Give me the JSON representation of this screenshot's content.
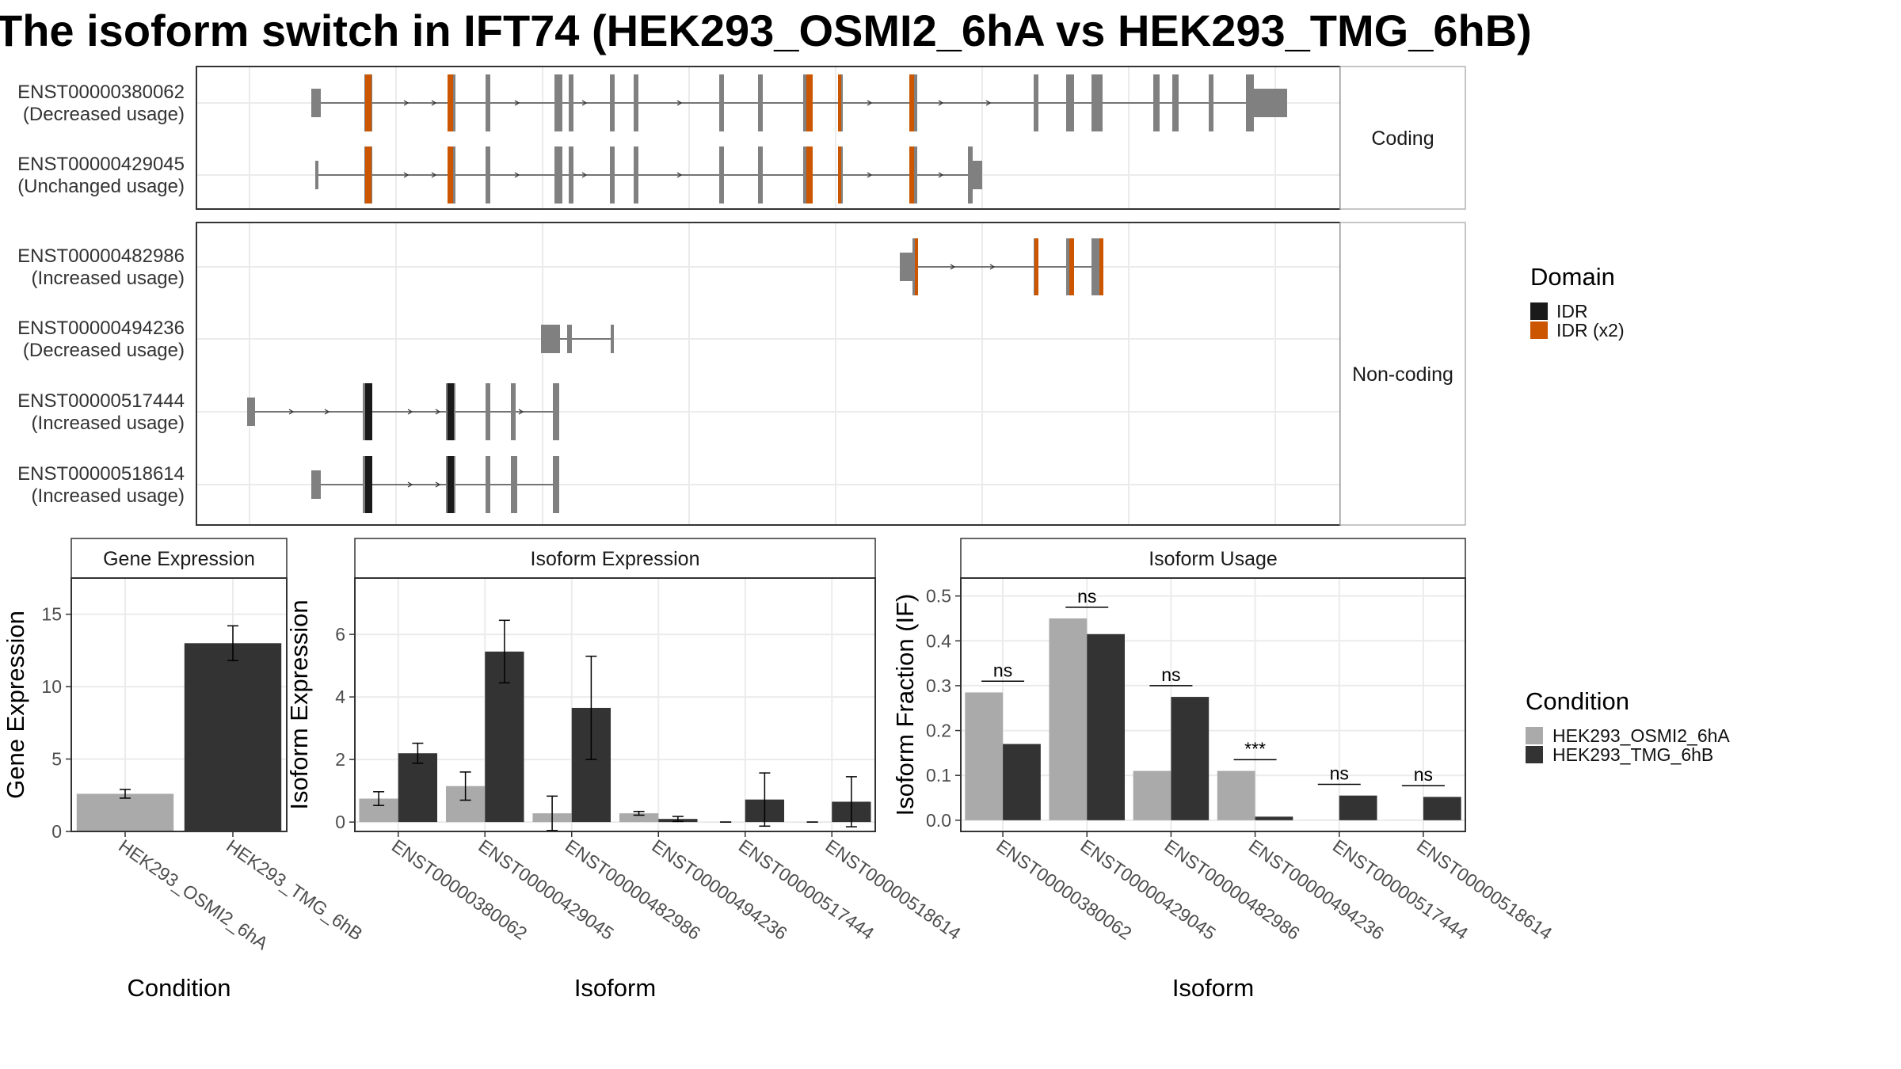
{
  "title": "The isoform switch in IFT74 (HEK293_OSMI2_6hA vs HEK293_TMG_6hB)",
  "colors": {
    "exon": "#808080",
    "idr": "#1a1a1a",
    "idr_x2": "#cc5500",
    "osmi": "#aaaaaa",
    "tmg": "#333333"
  },
  "structure": {
    "facets": [
      {
        "label": "Coding",
        "transcripts": [
          {
            "id": "ENST00000380062",
            "usage": "(Decreased usage)"
          },
          {
            "id": "ENST00000429045",
            "usage": "(Unchanged usage)"
          }
        ]
      },
      {
        "label": "Non-coding",
        "transcripts": [
          {
            "id": "ENST00000482986",
            "usage": "(Increased usage)"
          },
          {
            "id": "ENST00000494236",
            "usage": "(Decreased usage)"
          },
          {
            "id": "ENST00000517444",
            "usage": "(Increased usage)"
          },
          {
            "id": "ENST00000518614",
            "usage": "(Increased usage)"
          }
        ]
      }
    ]
  },
  "legend_domain": {
    "title": "Domain",
    "items": [
      {
        "label": "IDR",
        "color": "#1a1a1a"
      },
      {
        "label": "IDR (x2)",
        "color": "#cc5500"
      }
    ]
  },
  "legend_condition": {
    "title": "Condition",
    "items": [
      {
        "label": "HEK293_OSMI2_6hA",
        "color": "#aaaaaa"
      },
      {
        "label": "HEK293_TMG_6hB",
        "color": "#333333"
      }
    ]
  },
  "chart_data": [
    {
      "type": "bar",
      "title": "Gene Expression",
      "xlabel": "Condition",
      "ylabel": "Gene Expression",
      "categories": [
        "HEK293_OSMI2_6hA",
        "HEK293_TMG_6hB"
      ],
      "values": [
        2.6,
        13.0
      ],
      "errors": [
        0.3,
        1.2
      ],
      "ylim": [
        0,
        17.5
      ],
      "yticks": [
        0,
        5,
        10,
        15
      ]
    },
    {
      "type": "bar",
      "title": "Isoform Expression",
      "xlabel": "Isoform",
      "ylabel": "Isoform Expression",
      "categories": [
        "ENST00000380062",
        "ENST00000429045",
        "ENST00000482986",
        "ENST00000494236",
        "ENST00000517444",
        "ENST00000518614"
      ],
      "series": [
        {
          "name": "HEK293_OSMI2_6hA",
          "values": [
            0.75,
            1.15,
            0.28,
            0.28,
            0.0,
            0.0
          ],
          "errors": [
            0.22,
            0.45,
            0.55,
            0.06,
            0.0,
            0.0
          ]
        },
        {
          "name": "HEK293_TMG_6hB",
          "values": [
            2.2,
            5.45,
            3.65,
            0.1,
            0.72,
            0.65
          ],
          "errors": [
            0.32,
            1.0,
            1.65,
            0.08,
            0.85,
            0.8
          ]
        }
      ],
      "ylim": [
        -0.3,
        7.8
      ],
      "yticks": [
        0,
        2,
        4,
        6
      ]
    },
    {
      "type": "bar",
      "title": "Isoform Usage",
      "xlabel": "Isoform",
      "ylabel": "Isoform Fraction (IF)",
      "categories": [
        "ENST00000380062",
        "ENST00000429045",
        "ENST00000482986",
        "ENST00000494236",
        "ENST00000517444",
        "ENST00000518614"
      ],
      "series": [
        {
          "name": "HEK293_OSMI2_6hA",
          "values": [
            0.285,
            0.45,
            0.11,
            0.11,
            0.0,
            0.0
          ]
        },
        {
          "name": "HEK293_TMG_6hB",
          "values": [
            0.17,
            0.415,
            0.275,
            0.008,
            0.055,
            0.052
          ]
        }
      ],
      "significance": [
        "ns",
        "ns",
        "ns",
        "***",
        "ns",
        "ns"
      ],
      "ylim": [
        -0.025,
        0.54
      ],
      "yticks": [
        0.0,
        0.1,
        0.2,
        0.3,
        0.4,
        0.5
      ]
    }
  ]
}
